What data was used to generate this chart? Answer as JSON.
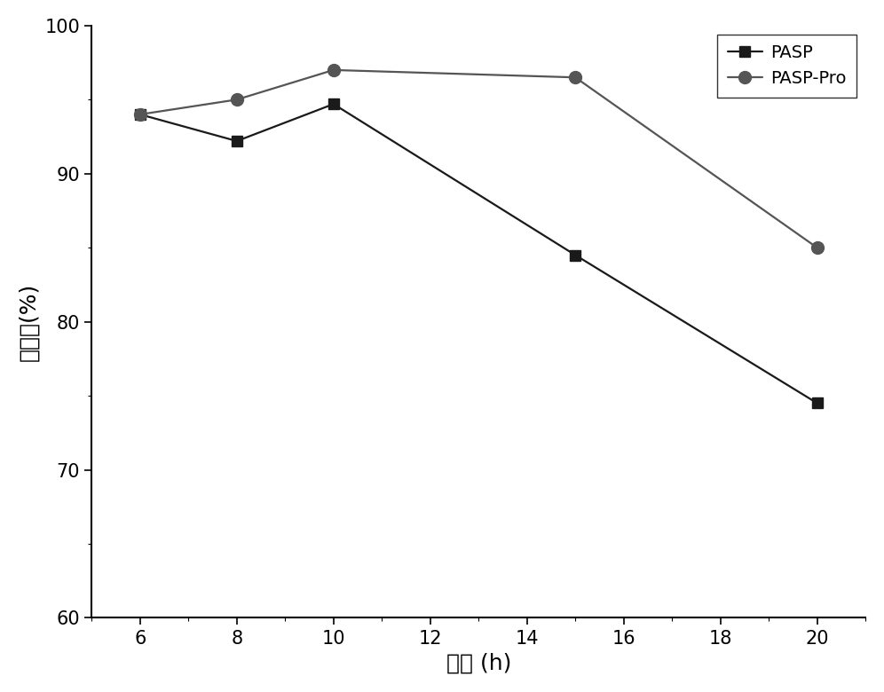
{
  "x": [
    6,
    8,
    10,
    15,
    20
  ],
  "pasp_y": [
    94.0,
    92.2,
    94.7,
    84.5,
    74.5
  ],
  "pasp_pro_y": [
    94.0,
    95.0,
    97.0,
    96.5,
    85.0
  ],
  "pasp_label": "PASP",
  "pasp_pro_label": "PASP-Pro",
  "pasp_color": "#1a1a1a",
  "pasp_pro_color": "#555555",
  "xlabel": "时间 (h)",
  "ylabel": "阻垄率(%)",
  "xlim": [
    5.0,
    21.0
  ],
  "ylim": [
    60,
    100
  ],
  "xticks": [
    6,
    8,
    10,
    12,
    14,
    16,
    18,
    20
  ],
  "yticks": [
    60,
    70,
    80,
    90,
    100
  ],
  "bg_color": "#ffffff",
  "marker_size_square": 9,
  "marker_size_circle": 10,
  "linewidth": 1.6,
  "legend_loc": "upper right",
  "font_size_axis_label": 18,
  "font_size_tick": 15,
  "font_size_legend": 14
}
